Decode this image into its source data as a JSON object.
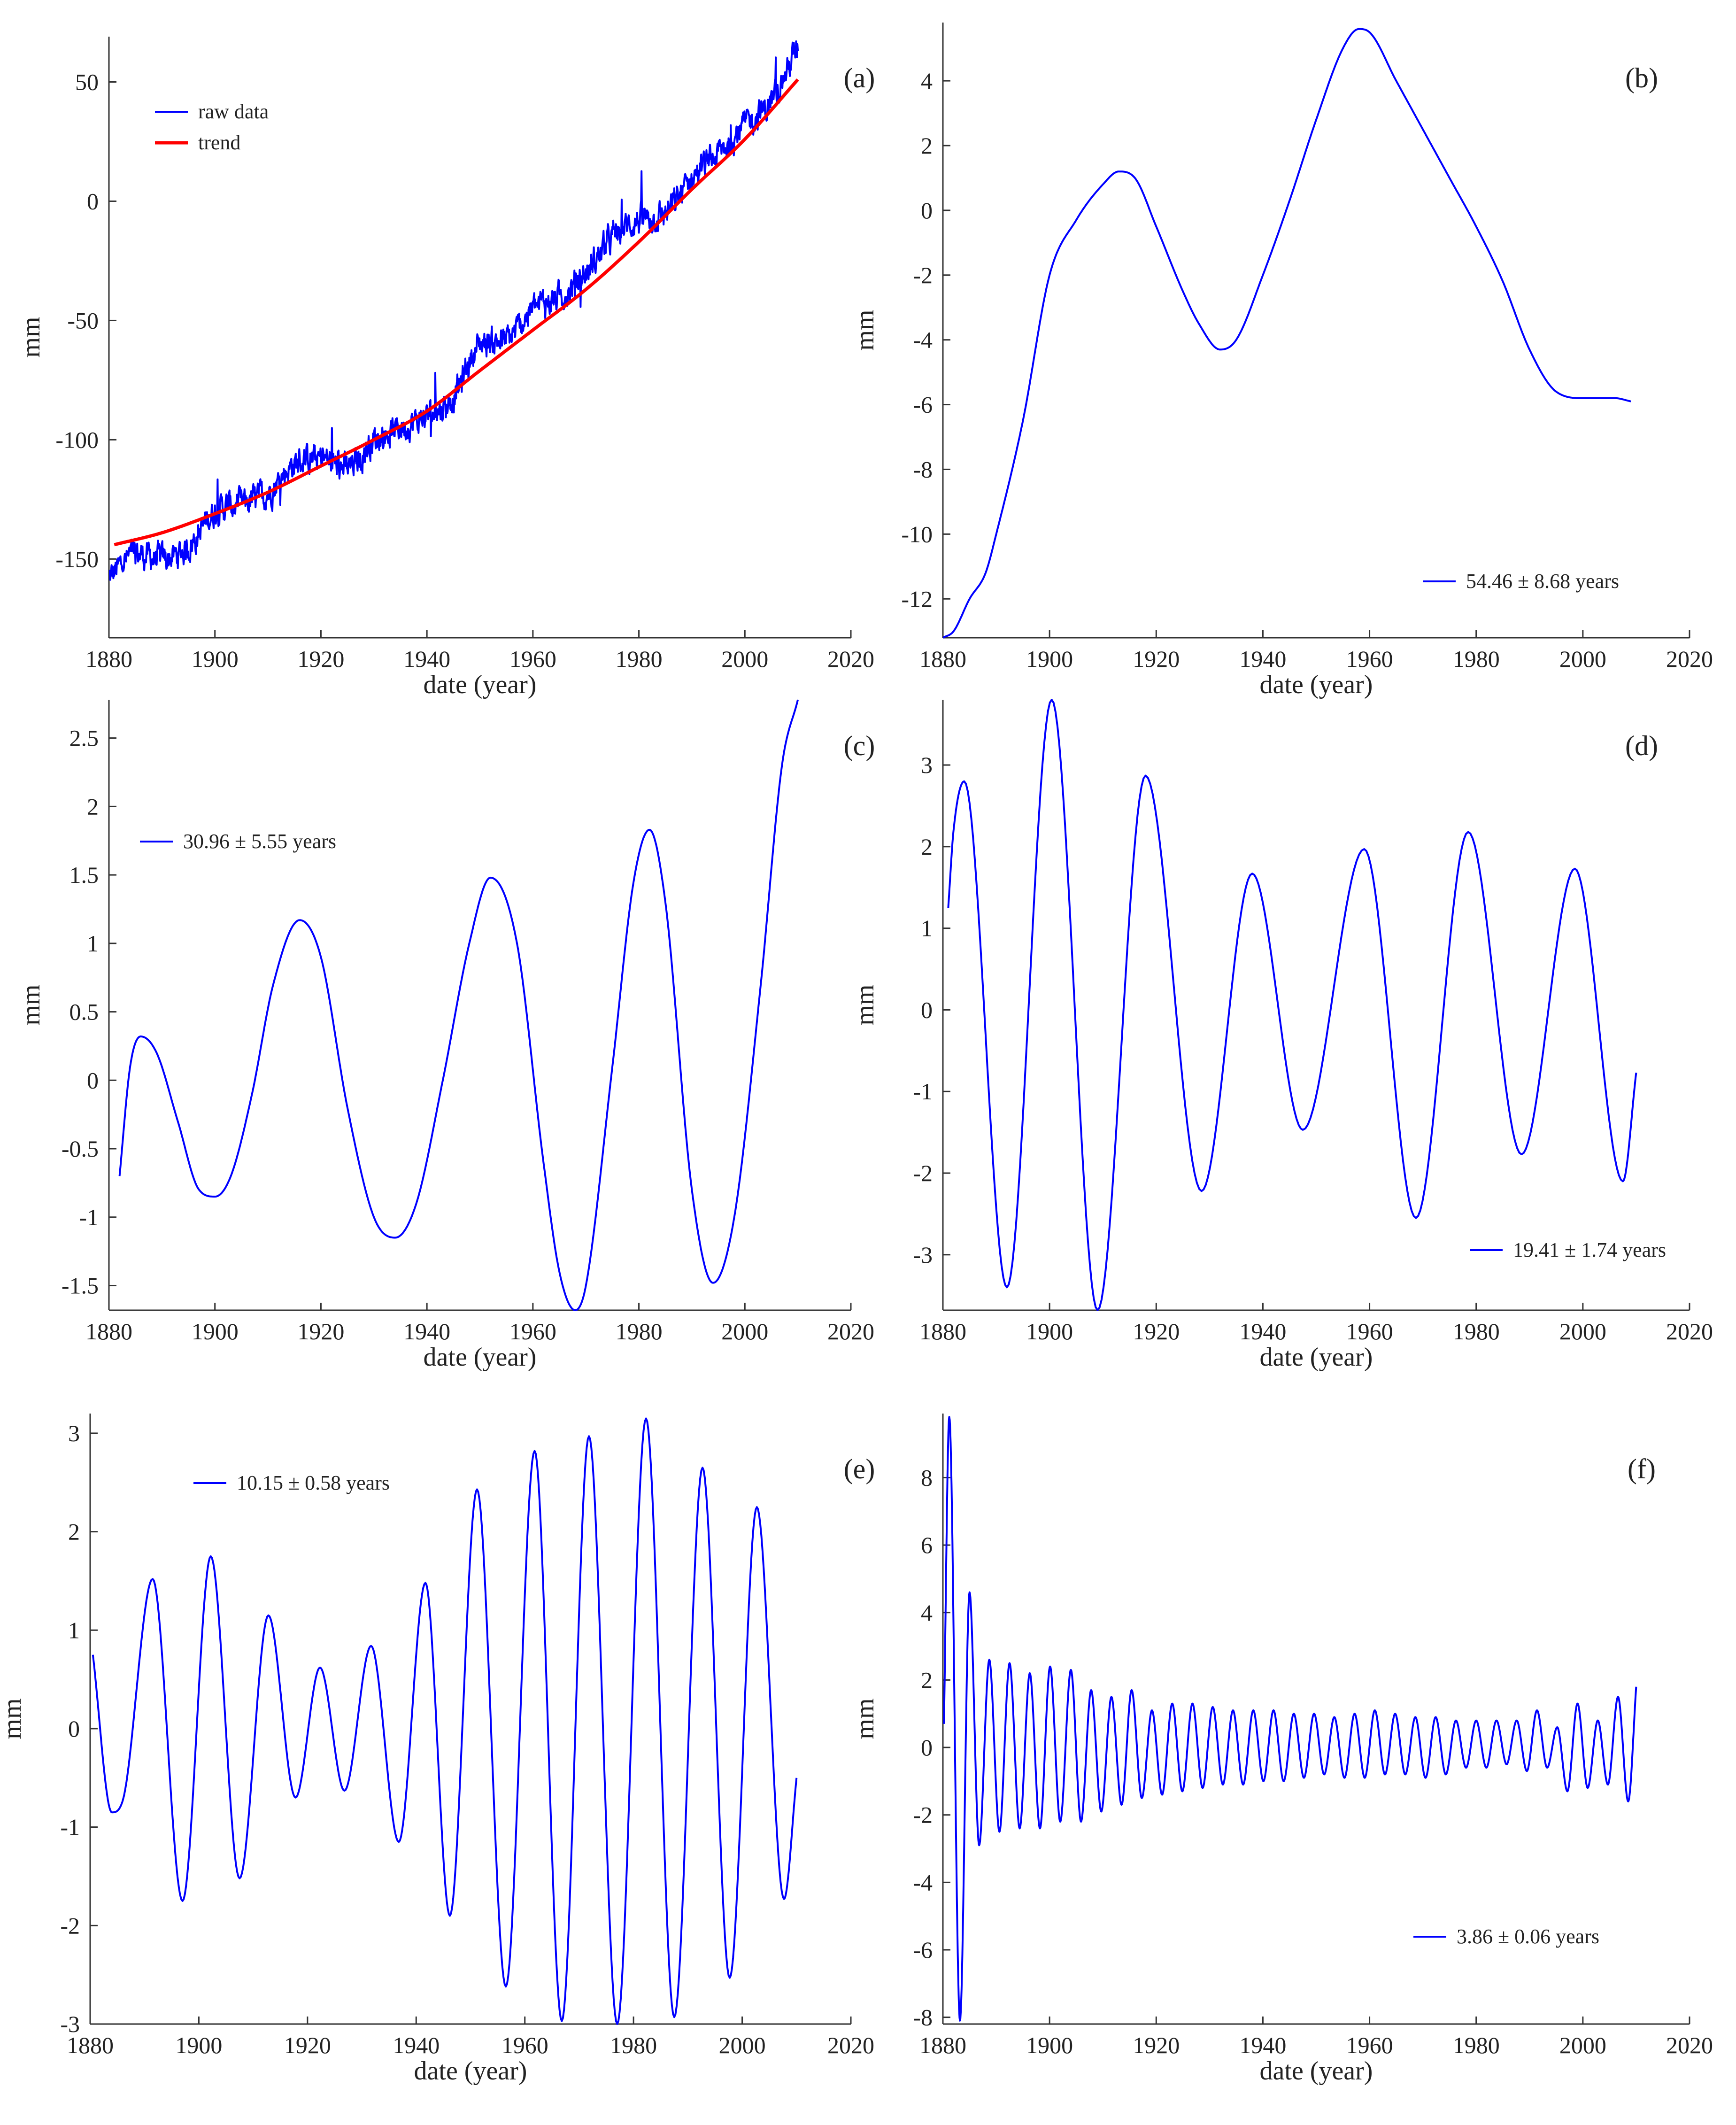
{
  "figure": {
    "background": "#ffffff",
    "axis_color": "#333333"
  },
  "chart_data": [
    {
      "id": "a",
      "type": "line",
      "panel_label": "(a)",
      "xlabel": "date (year)",
      "ylabel": "mm",
      "xlim": [
        1880,
        2020
      ],
      "ylim": [
        -183,
        69
      ],
      "xticks": [
        1880,
        1900,
        1920,
        1940,
        1960,
        1980,
        2000,
        2020
      ],
      "yticks": [
        -150,
        -100,
        -50,
        0,
        50
      ],
      "legend_position": "top-left",
      "series": [
        {
          "name": "raw data",
          "color": "#0000ff",
          "kind": "noisy",
          "x": [
            1880,
            1885,
            1890,
            1895,
            1900,
            1905,
            1910,
            1915,
            1920,
            1925,
            1930,
            1935,
            1940,
            1945,
            1950,
            1955,
            1960,
            1965,
            1970,
            1975,
            1980,
            1985,
            1990,
            1995,
            2000,
            2005,
            2010
          ],
          "y": [
            -158,
            -148,
            -150,
            -145,
            -130,
            -127,
            -122,
            -110,
            -108,
            -112,
            -100,
            -95,
            -90,
            -82,
            -60,
            -58,
            -45,
            -40,
            -30,
            -15,
            -8,
            -5,
            10,
            20,
            32,
            42,
            65
          ]
        },
        {
          "name": "trend",
          "color": "#ff0000",
          "kind": "smooth",
          "x": [
            1881,
            1890,
            1900,
            1910,
            1920,
            1930,
            1940,
            1950,
            1960,
            1970,
            1980,
            1990,
            2000,
            2010
          ],
          "y": [
            -144,
            -139,
            -131,
            -122,
            -111,
            -100,
            -88,
            -71,
            -54,
            -37,
            -17,
            5,
            26,
            51
          ]
        }
      ]
    },
    {
      "id": "b",
      "type": "line",
      "panel_label": "(b)",
      "xlabel": "date (year)",
      "ylabel": "mm",
      "xlim": [
        1880,
        2020
      ],
      "ylim": [
        -13.2,
        5.8
      ],
      "xticks": [
        1880,
        1900,
        1920,
        1940,
        1960,
        1980,
        2000,
        2020
      ],
      "yticks": [
        -12,
        -10,
        -8,
        -6,
        -4,
        -2,
        0,
        2,
        4
      ],
      "legend_position": "bottom-right",
      "series": [
        {
          "name": "54.46 ± 8.68 years",
          "color": "#0000ff",
          "kind": "smooth",
          "x": [
            1880,
            1882,
            1885,
            1888,
            1890,
            1895,
            1900,
            1905,
            1910,
            1913,
            1916,
            1920,
            1925,
            1928,
            1932,
            1935,
            1940,
            1945,
            1950,
            1955,
            1958,
            1960,
            1965,
            1970,
            1975,
            1980,
            1985,
            1990,
            1995,
            2000,
            2004,
            2006,
            2009
          ],
          "y": [
            -13.2,
            -13.0,
            -12.0,
            -11.2,
            -10.0,
            -6.5,
            -2.0,
            -0.3,
            0.8,
            1.2,
            1.0,
            -0.5,
            -2.5,
            -3.5,
            -4.3,
            -4.0,
            -2.0,
            0.3,
            2.8,
            5.0,
            5.6,
            5.5,
            4.0,
            2.5,
            1.0,
            -0.5,
            -2.2,
            -4.3,
            -5.6,
            -5.8,
            -5.8,
            -5.8,
            -5.9
          ]
        }
      ]
    },
    {
      "id": "c",
      "type": "line",
      "panel_label": "(c)",
      "xlabel": "date (year)",
      "ylabel": "mm",
      "xlim": [
        1880,
        2020
      ],
      "ylim": [
        -1.68,
        2.78
      ],
      "xticks": [
        1880,
        1900,
        1920,
        1940,
        1960,
        1980,
        2000,
        2020
      ],
      "yticks": [
        -1.5,
        -1,
        -0.5,
        0,
        0.5,
        1,
        1.5,
        2,
        2.5
      ],
      "legend_position": "top-left",
      "series": [
        {
          "name": "30.96 ± 5.55 years",
          "color": "#0000ff",
          "kind": "smooth",
          "x": [
            1882,
            1884,
            1886,
            1889,
            1893,
            1897,
            1900,
            1903,
            1907,
            1911,
            1916,
            1920,
            1925,
            1930,
            1934,
            1938,
            1943,
            1948,
            1952,
            1957,
            1962,
            1965,
            1968,
            1970,
            1975,
            1979,
            1982,
            1985,
            1990,
            1994,
            1998,
            2003,
            2007,
            2010
          ],
          "y": [
            -0.7,
            0.1,
            0.32,
            0.2,
            -0.3,
            -0.8,
            -0.85,
            -0.7,
            -0.1,
            0.7,
            1.17,
            0.9,
            -0.2,
            -1.0,
            -1.15,
            -0.9,
            0.0,
            1.0,
            1.48,
            1.0,
            -0.6,
            -1.4,
            -1.68,
            -1.5,
            0.1,
            1.45,
            1.83,
            1.3,
            -0.8,
            -1.48,
            -1.0,
            0.7,
            2.3,
            2.78
          ]
        }
      ]
    },
    {
      "id": "d",
      "type": "line",
      "panel_label": "(d)",
      "xlabel": "date (year)",
      "ylabel": "mm",
      "xlim": [
        1880,
        2020
      ],
      "ylim": [
        -3.68,
        3.8
      ],
      "xticks": [
        1880,
        1900,
        1920,
        1940,
        1960,
        1980,
        2000,
        2020
      ],
      "yticks": [
        -3,
        -2,
        -1,
        0,
        1,
        2,
        3
      ],
      "legend_position": "bottom-right",
      "series": [
        {
          "name": "19.41 ± 1.74 years",
          "color": "#0000ff",
          "kind": "oscillation",
          "x": [
            1881,
            1882,
            1884,
            1892,
            1900.4,
            1909,
            1918,
            1928.5,
            1938,
            1947.5,
            1959,
            1968.7,
            1978.5,
            1988.5,
            1998.5,
            2007.5,
            2010
          ],
          "y": [
            1.25,
            2.2,
            2.8,
            -3.4,
            3.8,
            -3.68,
            2.87,
            -2.22,
            1.67,
            -1.47,
            1.97,
            -2.55,
            2.18,
            -1.77,
            1.73,
            -2.1,
            -0.77
          ]
        }
      ]
    },
    {
      "id": "e",
      "type": "line",
      "panel_label": "(e)",
      "xlabel": "date (year)",
      "ylabel": "mm",
      "xlim": [
        1880,
        2020
      ],
      "ylim": [
        -3.0,
        3.2
      ],
      "xticks": [
        1880,
        1900,
        1920,
        1940,
        1960,
        1980,
        2000,
        2020
      ],
      "yticks": [
        -3,
        -2,
        -1,
        0,
        1,
        2,
        3
      ],
      "legend_position": "top-left",
      "series": [
        {
          "name": "10.15 ± 0.58 years",
          "color": "#0000ff",
          "kind": "oscillation",
          "x": [
            1880.5,
            1884,
            1886,
            1891.5,
            1897,
            1902.2,
            1907.5,
            1912.8,
            1917.8,
            1922.3,
            1926.8,
            1931.7,
            1936.8,
            1941.7,
            1946.2,
            1951.2,
            1956.5,
            1961.8,
            1966.8,
            1971.8,
            1977,
            1982.3,
            1987.5,
            1992.7,
            1997.7,
            2002.7,
            2007.7,
            2010
          ],
          "y": [
            0.75,
            -0.85,
            -0.73,
            1.52,
            -1.75,
            1.75,
            -1.52,
            1.15,
            -0.7,
            0.62,
            -0.63,
            0.84,
            -1.15,
            1.48,
            -1.9,
            2.43,
            -2.62,
            2.82,
            -2.97,
            2.97,
            -3.0,
            3.15,
            -2.93,
            2.65,
            -2.53,
            2.25,
            -1.73,
            -0.5
          ]
        }
      ]
    },
    {
      "id": "f",
      "type": "line",
      "panel_label": "(f)",
      "xlabel": "date (year)",
      "ylabel": "mm",
      "xlim": [
        1880,
        2020
      ],
      "ylim": [
        -8.2,
        9.9
      ],
      "xticks": [
        1880,
        1900,
        1920,
        1940,
        1960,
        1980,
        2000,
        2020
      ],
      "yticks": [
        -8,
        -6,
        -4,
        -2,
        0,
        2,
        4,
        6,
        8
      ],
      "legend_position": "bottom-right",
      "series": [
        {
          "name": "3.86 ± 0.06 years",
          "color": "#0000ff",
          "kind": "oscillation",
          "x": [
            1880.2,
            1881.2,
            1883.2,
            1885,
            1886.8,
            1888.7,
            1890.6,
            1892.5,
            1894.4,
            1896.3,
            1898.2,
            1900.1,
            1902,
            1904,
            1905.9,
            1907.8,
            1909.7,
            1911.6,
            1913.5,
            1915.4,
            1917.3,
            1919.2,
            1921.1,
            1923,
            1924.9,
            1926.8,
            1928.7,
            1930.6,
            1932.5,
            1934.4,
            1936.3,
            1938.2,
            1940.1,
            1942,
            1943.9,
            1945.8,
            1947.7,
            1949.6,
            1951.5,
            1953.4,
            1955.3,
            1957.2,
            1959.1,
            1961,
            1962.9,
            1964.8,
            1966.7,
            1968.6,
            1970.5,
            1972.4,
            1974.3,
            1976.2,
            1978.1,
            1980,
            1981.9,
            1983.8,
            1985.7,
            1987.6,
            1989.5,
            1991.4,
            1993.3,
            1995.2,
            1997.1,
            1999,
            2000.9,
            2002.8,
            2004.7,
            2006.6,
            2008.5,
            2010
          ],
          "y": [
            0.7,
            9.8,
            -8.1,
            4.6,
            -2.9,
            2.6,
            -2.5,
            2.5,
            -2.4,
            2.2,
            -2.4,
            2.4,
            -2.2,
            2.3,
            -2.2,
            1.7,
            -1.9,
            1.5,
            -1.7,
            1.7,
            -1.5,
            1.1,
            -1.4,
            1.3,
            -1.3,
            1.3,
            -1.2,
            1.2,
            -1.1,
            1.1,
            -1.1,
            1.1,
            -1.0,
            1.1,
            -1.0,
            1.0,
            -0.9,
            1.0,
            -0.8,
            0.9,
            -0.9,
            1.0,
            -0.9,
            1.1,
            -0.8,
            1.0,
            -0.8,
            0.9,
            -0.9,
            0.9,
            -0.8,
            0.8,
            -0.6,
            0.8,
            -0.6,
            0.8,
            -0.5,
            0.8,
            -0.7,
            1.1,
            -0.6,
            0.6,
            -1.3,
            1.3,
            -1.2,
            0.8,
            -1.1,
            1.5,
            -1.6,
            1.8
          ]
        }
      ]
    }
  ]
}
